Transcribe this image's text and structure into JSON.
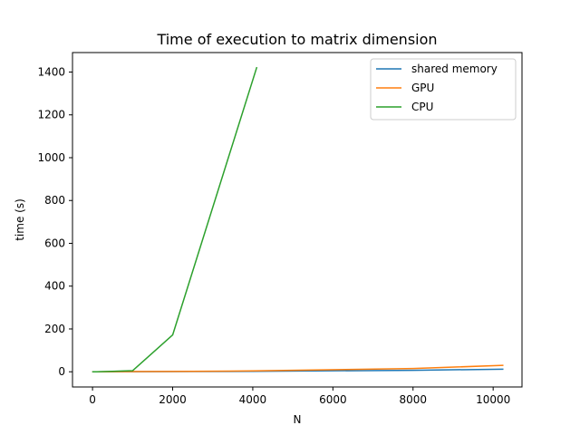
{
  "chart_data": {
    "type": "line",
    "title": "Time of execution to matrix dimension",
    "xlabel": "N",
    "ylabel": "time (s)",
    "xlim": [
      -500,
      10720
    ],
    "ylim": [
      -71,
      1491
    ],
    "xticks": [
      0,
      2000,
      4000,
      6000,
      8000,
      10000
    ],
    "yticks": [
      0,
      200,
      400,
      600,
      800,
      1000,
      1200,
      1400
    ],
    "grid": false,
    "legend_position": "top-right",
    "series": [
      {
        "name": "shared memory",
        "color": "#1f77b4",
        "x": [
          10,
          100,
          1000,
          2000,
          4000,
          8000,
          10240
        ],
        "y": [
          0,
          0,
          0.5,
          1,
          2,
          7,
          12
        ]
      },
      {
        "name": "GPU",
        "color": "#ff7f0e",
        "x": [
          10,
          100,
          1000,
          2000,
          4000,
          8000,
          10240
        ],
        "y": [
          0,
          0,
          1,
          1.5,
          4,
          15,
          30
        ]
      },
      {
        "name": "CPU",
        "color": "#2ca02c",
        "x": [
          10,
          100,
          1000,
          2000,
          4096
        ],
        "y": [
          0,
          0,
          5,
          172,
          1420
        ]
      }
    ]
  }
}
